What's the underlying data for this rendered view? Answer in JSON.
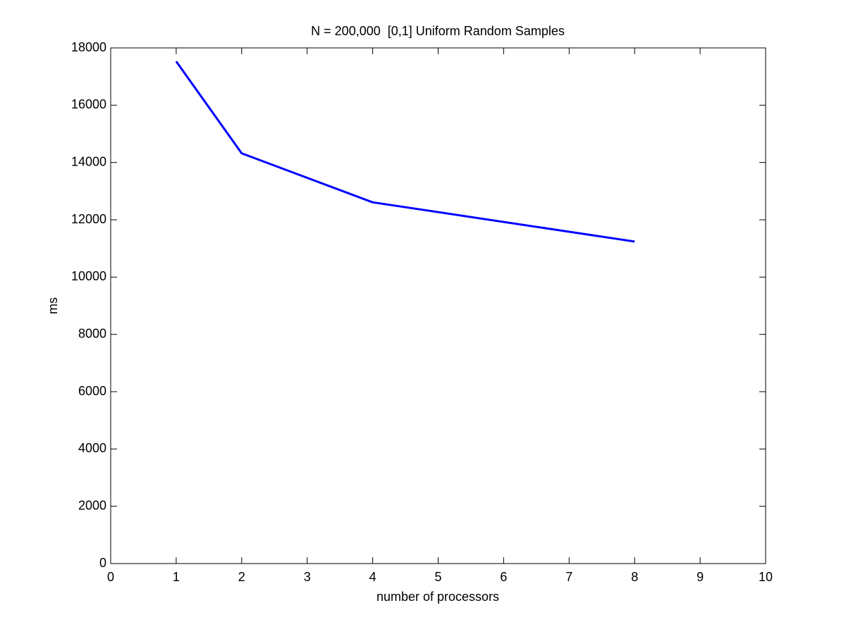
{
  "chart_data": {
    "type": "line",
    "title": "N = 200,000  [0,1] Uniform Random Samples",
    "x_label": "number of processors",
    "y_label": "ms",
    "x": [
      1,
      2,
      4,
      8
    ],
    "series": [
      {
        "color": "#0000ff",
        "values": [
          17530,
          14320,
          12610,
          11240
        ]
      }
    ],
    "xlim": [
      0,
      10
    ],
    "xticks": [
      0,
      1,
      2,
      3,
      4,
      5,
      6,
      7,
      8,
      9,
      10
    ],
    "ylim": [
      0,
      18000
    ],
    "yticks": [
      0,
      2000,
      4000,
      6000,
      8000,
      10000,
      12000,
      14000,
      16000,
      18000
    ],
    "grid": false
  }
}
